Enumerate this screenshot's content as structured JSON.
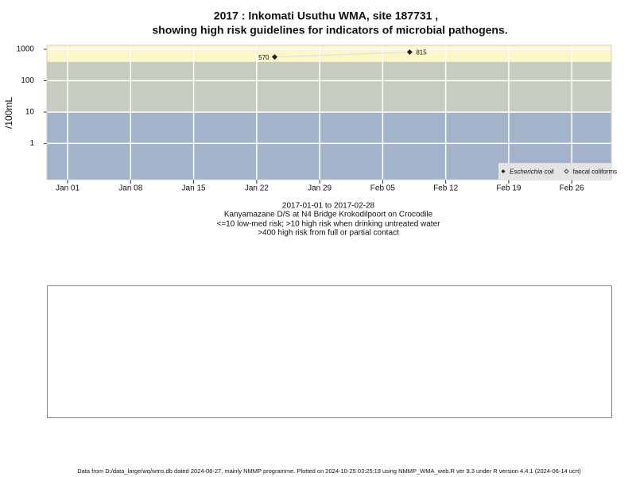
{
  "chart_data": {
    "type": "scatter-line",
    "title": [
      "2017 : Inkomati Usuthu WMA, site 187731 ,",
      "showing high risk guidelines for indicators of microbial pathogens."
    ],
    "y_label": "/100mL",
    "x": [
      24,
      39
    ],
    "series": [
      {
        "name": "Escherichia coli",
        "color": "#222222",
        "line_color": "#dddddd",
        "values": [
          570,
          815
        ]
      },
      {
        "name": "faecal coliforms",
        "color": "#222222",
        "values": [
          null,
          null
        ]
      }
    ],
    "log_y": true,
    "ylim": [
      0.07,
      1340
    ],
    "yticks": [
      1,
      10,
      100,
      1000
    ],
    "xlim": [
      -1.3,
      61.4
    ],
    "xticks": [
      {
        "value": 1,
        "label": "Jan 01"
      },
      {
        "value": 8,
        "label": "Jan 08"
      },
      {
        "value": 15,
        "label": "Jan 15"
      },
      {
        "value": 22,
        "label": "Jan 22"
      },
      {
        "value": 29,
        "label": "Jan 29"
      },
      {
        "value": 36,
        "label": "Feb 05"
      },
      {
        "value": 43,
        "label": "Feb 12"
      },
      {
        "value": 50,
        "label": "Feb 19"
      },
      {
        "value": 57,
        "label": "Feb 26"
      }
    ],
    "grid": true,
    "legend": "bottom-right",
    "risk_thresholds": [
      10,
      400
    ],
    "band_colors": [
      "#a3b3c9",
      "#c5ccc0",
      "#fdf6c9"
    ],
    "caption": [
      "2017-01-01 to 2017-02-28",
      "Kanyamazane D/S at N4 Bridge Krokodilpoort on Crocodile",
      "<=10 low-med risk; >10 high risk when drinking untreated water",
      ">400 high risk from full or partial contact"
    ],
    "footer": "Data from D:/data_large/wq/wms.db dated 2024-08-27, mainly NMMP programme. Plotted on 2024-10-25 03:25:19 using NMMP_WMA_web.R ver 9.3 under R version 4.4.1 (2024-06-14 ucrt)"
  }
}
